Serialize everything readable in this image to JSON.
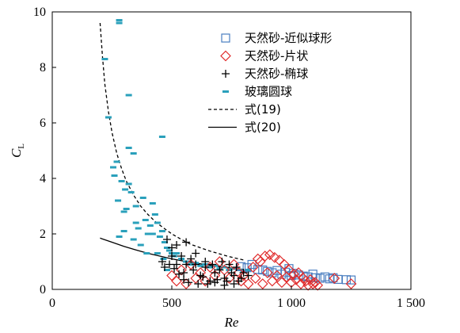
{
  "chart_data": {
    "type": "scatter",
    "title": "",
    "xlabel": "Re",
    "ylabel": {
      "main": "C",
      "sub": "L"
    },
    "xlim": [
      0,
      1500
    ],
    "ylim": [
      0,
      10
    ],
    "xticks": [
      0,
      500,
      1000,
      1500
    ],
    "xtick_labels": [
      "0",
      "500",
      "1 000",
      "1 500"
    ],
    "yticks": [
      0,
      2,
      4,
      6,
      8,
      10
    ],
    "ytick_labels": [
      "0",
      "2",
      "4",
      "6",
      "8",
      "10"
    ],
    "grid": false,
    "legend_position": "top-right",
    "colors": {
      "sphere": "#4a7ec0",
      "flake": "#e02a2a",
      "ellipsoid": "#000000",
      "glass": "#2aa0bb",
      "line": "#000000"
    },
    "series": [
      {
        "name": "天然砂-近似球形",
        "marker": "square",
        "points": [
          [
            790,
            0.82
          ],
          [
            815,
            0.78
          ],
          [
            835,
            0.9
          ],
          [
            860,
            0.72
          ],
          [
            880,
            0.7
          ],
          [
            900,
            0.65
          ],
          [
            920,
            0.6
          ],
          [
            940,
            0.68
          ],
          [
            960,
            0.55
          ],
          [
            975,
            0.62
          ],
          [
            990,
            0.75
          ],
          [
            1000,
            0.5
          ],
          [
            1010,
            0.58
          ],
          [
            1030,
            0.52
          ],
          [
            1050,
            0.48
          ],
          [
            1070,
            0.45
          ],
          [
            1090,
            0.55
          ],
          [
            1100,
            0.42
          ],
          [
            1120,
            0.4
          ],
          [
            1140,
            0.45
          ],
          [
            1160,
            0.38
          ],
          [
            1175,
            0.42
          ],
          [
            1195,
            0.36
          ],
          [
            1230,
            0.35
          ],
          [
            1250,
            0.34
          ]
        ]
      },
      {
        "name": "天然砂-片状",
        "marker": "diamond",
        "points": [
          [
            500,
            0.5
          ],
          [
            520,
            0.3
          ],
          [
            540,
            0.7
          ],
          [
            560,
            0.2
          ],
          [
            580,
            0.9
          ],
          [
            600,
            0.4
          ],
          [
            620,
            0.6
          ],
          [
            640,
            0.3
          ],
          [
            660,
            0.8
          ],
          [
            680,
            0.5
          ],
          [
            700,
            1.0
          ],
          [
            720,
            0.7
          ],
          [
            740,
            0.4
          ],
          [
            760,
            0.9
          ],
          [
            780,
            0.6
          ],
          [
            790,
            0.3
          ],
          [
            800,
            0.5
          ],
          [
            820,
            0.2
          ],
          [
            840,
            0.8
          ],
          [
            850,
            0.4
          ],
          [
            860,
            1.1
          ],
          [
            870,
            1.0
          ],
          [
            880,
            0.2
          ],
          [
            890,
            1.2
          ],
          [
            900,
            0.6
          ],
          [
            910,
            1.25
          ],
          [
            920,
            0.3
          ],
          [
            930,
            1.15
          ],
          [
            940,
            0.5
          ],
          [
            950,
            1.05
          ],
          [
            960,
            0.25
          ],
          [
            970,
            0.9
          ],
          [
            980,
            0.45
          ],
          [
            990,
            0.7
          ],
          [
            1000,
            0.25
          ],
          [
            1010,
            0.55
          ],
          [
            1020,
            0.35
          ],
          [
            1030,
            0.6
          ],
          [
            1040,
            0.2
          ],
          [
            1050,
            0.4
          ],
          [
            1060,
            0.3
          ],
          [
            1070,
            0.15
          ],
          [
            1080,
            0.35
          ],
          [
            1090,
            0.2
          ],
          [
            1100,
            0.25
          ],
          [
            1110,
            0.15
          ],
          [
            1180,
            0.4
          ],
          [
            1250,
            0.2
          ]
        ]
      },
      {
        "name": "天然砂-椭球",
        "marker": "plus",
        "points": [
          [
            480,
            1.8
          ],
          [
            500,
            1.5
          ],
          [
            520,
            1.6
          ],
          [
            540,
            1.2
          ],
          [
            560,
            1.7
          ],
          [
            500,
            1.2
          ],
          [
            520,
            0.9
          ],
          [
            550,
            0.6
          ],
          [
            580,
            1.1
          ],
          [
            600,
            0.9
          ],
          [
            620,
            0.5
          ],
          [
            640,
            0.8
          ],
          [
            660,
            0.3
          ],
          [
            680,
            0.6
          ],
          [
            700,
            0.7
          ],
          [
            720,
            0.4
          ],
          [
            740,
            0.9
          ],
          [
            760,
            0.5
          ],
          [
            780,
            0.3
          ],
          [
            550,
            0.35
          ],
          [
            570,
            0.25
          ],
          [
            590,
            0.7
          ],
          [
            610,
            0.2
          ],
          [
            630,
            0.45
          ],
          [
            650,
            0.2
          ],
          [
            670,
            0.9
          ],
          [
            690,
            0.35
          ],
          [
            710,
            1.0
          ],
          [
            730,
            0.3
          ],
          [
            750,
            0.6
          ],
          [
            770,
            0.8
          ],
          [
            790,
            0.4
          ],
          [
            560,
            0.9
          ],
          [
            600,
            1.3
          ],
          [
            640,
            1.0
          ],
          [
            680,
            0.25
          ],
          [
            720,
            0.15
          ],
          [
            760,
            0.2
          ],
          [
            800,
            0.6
          ],
          [
            820,
            0.5
          ],
          [
            460,
            1.0
          ],
          [
            470,
            0.8
          ],
          [
            490,
            0.9
          ],
          [
            510,
            0.75
          ],
          [
            530,
            0.55
          ]
        ]
      },
      {
        "name": "玻璃圆球",
        "marker": "dash",
        "points": [
          [
            280,
            9.7
          ],
          [
            280,
            9.6
          ],
          [
            220,
            8.3
          ],
          [
            235,
            6.2
          ],
          [
            320,
            7.0
          ],
          [
            320,
            5.1
          ],
          [
            340,
            4.9
          ],
          [
            460,
            5.5
          ],
          [
            255,
            4.4
          ],
          [
            270,
            4.6
          ],
          [
            290,
            3.9
          ],
          [
            305,
            3.6
          ],
          [
            330,
            3.5
          ],
          [
            260,
            4.1
          ],
          [
            275,
            3.2
          ],
          [
            320,
            3.8
          ],
          [
            300,
            2.8
          ],
          [
            310,
            2.9
          ],
          [
            350,
            3.0
          ],
          [
            380,
            3.3
          ],
          [
            360,
            2.2
          ],
          [
            390,
            2.5
          ],
          [
            400,
            2.0
          ],
          [
            410,
            2.3
          ],
          [
            420,
            3.1
          ],
          [
            430,
            2.7
          ],
          [
            440,
            2.4
          ],
          [
            450,
            1.9
          ],
          [
            460,
            2.1
          ],
          [
            470,
            1.7
          ],
          [
            480,
            1.5
          ],
          [
            490,
            1.4
          ],
          [
            500,
            1.3
          ],
          [
            510,
            1.2
          ],
          [
            520,
            1.3
          ],
          [
            540,
            1.1
          ],
          [
            560,
            1.0
          ],
          [
            580,
            0.9
          ],
          [
            600,
            0.95
          ],
          [
            620,
            0.85
          ],
          [
            640,
            0.9
          ],
          [
            660,
            0.8
          ],
          [
            680,
            0.85
          ],
          [
            700,
            0.75
          ],
          [
            720,
            0.8
          ],
          [
            740,
            0.7
          ],
          [
            760,
            0.75
          ],
          [
            780,
            0.7
          ],
          [
            800,
            0.65
          ],
          [
            820,
            0.7
          ],
          [
            300,
            2.1
          ],
          [
            340,
            1.8
          ],
          [
            370,
            1.6
          ],
          [
            440,
            1.3
          ],
          [
            465,
            1.1
          ],
          [
            480,
            0.7
          ],
          [
            280,
            1.9
          ],
          [
            395,
            1.3
          ],
          [
            420,
            2.0
          ],
          [
            350,
            2.4
          ]
        ]
      },
      {
        "name": "式(19)",
        "type": "line",
        "style": "dashed",
        "points": [
          [
            200,
            9.6
          ],
          [
            210,
            8.4
          ],
          [
            220,
            7.4
          ],
          [
            235,
            6.4
          ],
          [
            250,
            5.65
          ],
          [
            270,
            4.9
          ],
          [
            290,
            4.35
          ],
          [
            310,
            3.9
          ],
          [
            340,
            3.4
          ],
          [
            370,
            3.0
          ],
          [
            400,
            2.7
          ],
          [
            430,
            2.45
          ],
          [
            460,
            2.25
          ],
          [
            500,
            2.0
          ],
          [
            540,
            1.8
          ],
          [
            580,
            1.62
          ],
          [
            620,
            1.5
          ],
          [
            660,
            1.38
          ],
          [
            700,
            1.28
          ],
          [
            740,
            1.18
          ],
          [
            780,
            1.1
          ],
          [
            800,
            1.06
          ]
        ]
      },
      {
        "name": "式(20)",
        "type": "line",
        "style": "solid",
        "points": [
          [
            200,
            1.85
          ],
          [
            250,
            1.7
          ],
          [
            300,
            1.55
          ],
          [
            350,
            1.42
          ],
          [
            400,
            1.3
          ],
          [
            450,
            1.2
          ],
          [
            500,
            1.1
          ],
          [
            550,
            1.02
          ],
          [
            600,
            0.95
          ],
          [
            650,
            0.88
          ],
          [
            700,
            0.82
          ],
          [
            750,
            0.77
          ],
          [
            800,
            0.72
          ]
        ]
      }
    ]
  }
}
